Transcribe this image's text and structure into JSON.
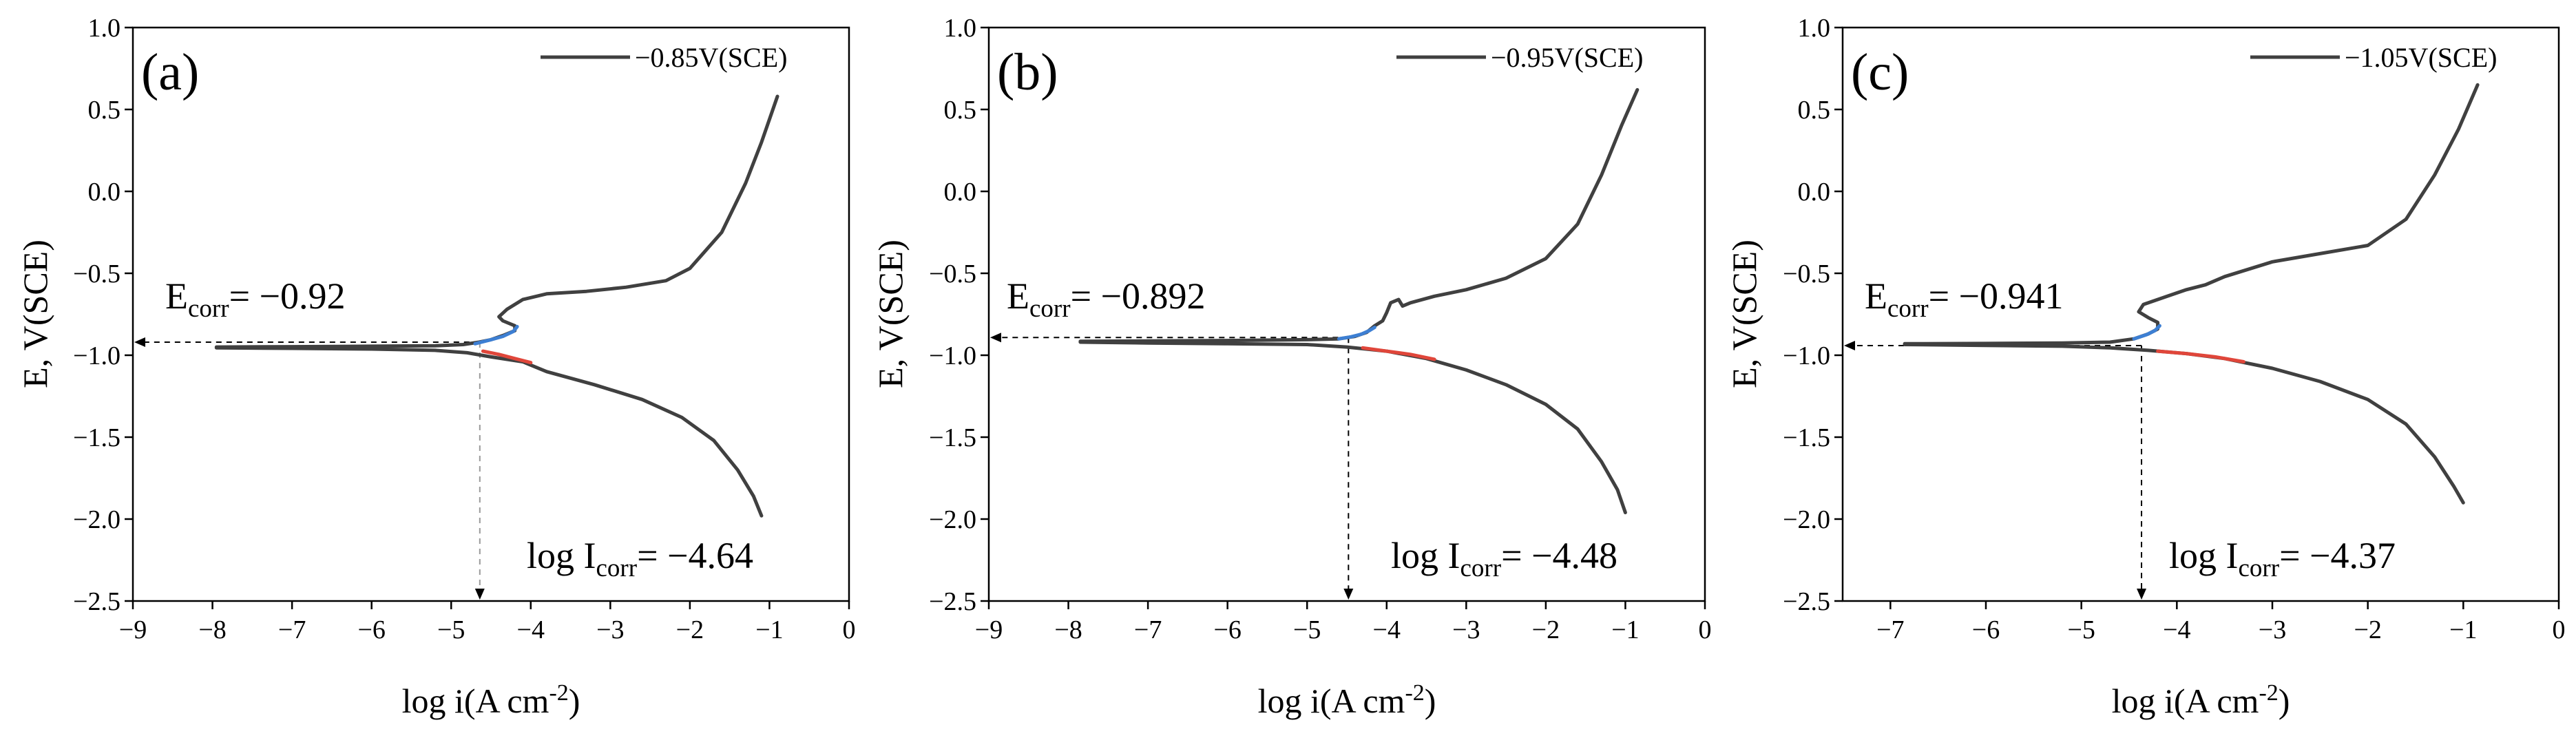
{
  "chart_data": [
    {
      "type": "line",
      "panel_label": "(a)",
      "xlabel": "log i(A cm",
      "xlabel_sup": "-2",
      "xlabel_tail": ")",
      "ylabel": "E, V(SCE)",
      "xlim": [
        -9,
        0
      ],
      "ylim": [
        -2.5,
        1.0
      ],
      "xticks": [
        -9,
        -8,
        -7,
        -6,
        -5,
        -4,
        -3,
        -2,
        -1,
        0
      ],
      "yticks": [
        1.0,
        0.5,
        0.0,
        -0.5,
        -1.0,
        -1.5,
        -2.0,
        -2.5
      ],
      "ytick_labels": [
        "1.0",
        "0.5",
        "0.0",
        "−0.5",
        "−1.0",
        "−1.5",
        "−2.0",
        "−2.5"
      ],
      "xtick_labels": [
        "−9",
        "−8",
        "−7",
        "−6",
        "−5",
        "−4",
        "−3",
        "−2",
        "−1",
        "0"
      ],
      "legend": "−0.85V(SCE)",
      "ecorr_label": "E",
      "ecorr_sub": "corr",
      "ecorr_value": "= −0.92",
      "icorr_label": "log I",
      "icorr_sub": "corr",
      "icorr_value": "= −4.64",
      "ecorr": -0.92,
      "log_icorr": -4.64,
      "series": [
        {
          "name": "anodic",
          "color": "#404040",
          "points": [
            [
              -7.95,
              -0.95
            ],
            [
              -7.0,
              -0.948
            ],
            [
              -6.0,
              -0.945
            ],
            [
              -5.2,
              -0.942
            ],
            [
              -4.85,
              -0.935
            ],
            [
              -4.65,
              -0.92
            ],
            [
              -4.5,
              -0.905
            ],
            [
              -4.35,
              -0.88
            ],
            [
              -4.2,
              -0.85
            ],
            [
              -4.2,
              -0.82
            ],
            [
              -4.35,
              -0.79
            ],
            [
              -4.4,
              -0.765
            ],
            [
              -4.3,
              -0.72
            ],
            [
              -4.1,
              -0.66
            ],
            [
              -3.8,
              -0.625
            ],
            [
              -3.3,
              -0.61
            ],
            [
              -2.8,
              -0.585
            ],
            [
              -2.3,
              -0.545
            ],
            [
              -2.0,
              -0.47
            ],
            [
              -1.6,
              -0.25
            ],
            [
              -1.3,
              0.05
            ],
            [
              -1.1,
              0.3
            ],
            [
              -0.9,
              0.58
            ]
          ]
        },
        {
          "name": "cathodic",
          "color": "#404040",
          "points": [
            [
              -7.95,
              -0.955
            ],
            [
              -7.0,
              -0.958
            ],
            [
              -6.0,
              -0.962
            ],
            [
              -5.2,
              -0.97
            ],
            [
              -4.8,
              -0.985
            ],
            [
              -4.5,
              -1.01
            ],
            [
              -4.1,
              -1.04
            ],
            [
              -3.8,
              -1.1
            ],
            [
              -3.2,
              -1.18
            ],
            [
              -2.6,
              -1.27
            ],
            [
              -2.1,
              -1.38
            ],
            [
              -1.7,
              -1.52
            ],
            [
              -1.4,
              -1.7
            ],
            [
              -1.2,
              -1.86
            ],
            [
              -1.1,
              -1.98
            ]
          ]
        },
        {
          "name": "anodic-tafel-fit",
          "color": "#3d7fd3",
          "points": [
            [
              -4.7,
              -0.93
            ],
            [
              -4.5,
              -0.905
            ],
            [
              -4.35,
              -0.885
            ],
            [
              -4.22,
              -0.855
            ],
            [
              -4.17,
              -0.825
            ]
          ]
        },
        {
          "name": "cathodic-tafel-fit",
          "color": "#e0463a",
          "points": [
            [
              -4.6,
              -0.975
            ],
            [
              -4.4,
              -0.995
            ],
            [
              -4.2,
              -1.02
            ],
            [
              -4.0,
              -1.045
            ]
          ]
        }
      ]
    },
    {
      "type": "line",
      "panel_label": "(b)",
      "xlabel": "log i(A cm",
      "xlabel_sup": "-2",
      "xlabel_tail": ")",
      "ylabel": "E, V(SCE)",
      "xlim": [
        -9,
        0
      ],
      "ylim": [
        -2.5,
        1.0
      ],
      "xticks": [
        -9,
        -8,
        -7,
        -6,
        -5,
        -4,
        -3,
        -2,
        -1,
        0
      ],
      "yticks": [
        1.0,
        0.5,
        0.0,
        -0.5,
        -1.0,
        -1.5,
        -2.0,
        -2.5
      ],
      "ytick_labels": [
        "1.0",
        "0.5",
        "0.0",
        "−0.5",
        "−1.0",
        "−1.5",
        "−2.0",
        "−2.5"
      ],
      "xtick_labels": [
        "−9",
        "−8",
        "−7",
        "−6",
        "−5",
        "−4",
        "−3",
        "−2",
        "−1",
        "0"
      ],
      "legend": "−0.95V(SCE)",
      "ecorr_label": "E",
      "ecorr_sub": "corr",
      "ecorr_value": "= −0.892",
      "icorr_label": "log I",
      "icorr_sub": "corr",
      "icorr_value": "= −4.48",
      "ecorr": -0.892,
      "log_icorr": -4.48,
      "series": [
        {
          "name": "anodic",
          "color": "#404040",
          "points": [
            [
              -7.85,
              -0.915
            ],
            [
              -7.0,
              -0.913
            ],
            [
              -6.0,
              -0.91
            ],
            [
              -5.0,
              -0.905
            ],
            [
              -4.6,
              -0.9
            ],
            [
              -4.4,
              -0.885
            ],
            [
              -4.25,
              -0.86
            ],
            [
              -4.15,
              -0.82
            ],
            [
              -4.05,
              -0.79
            ],
            [
              -4.0,
              -0.74
            ],
            [
              -3.95,
              -0.68
            ],
            [
              -3.85,
              -0.66
            ],
            [
              -3.8,
              -0.7
            ],
            [
              -3.7,
              -0.68
            ],
            [
              -3.4,
              -0.64
            ],
            [
              -3.0,
              -0.6
            ],
            [
              -2.5,
              -0.53
            ],
            [
              -2.0,
              -0.41
            ],
            [
              -1.6,
              -0.2
            ],
            [
              -1.3,
              0.1
            ],
            [
              -1.05,
              0.4
            ],
            [
              -0.85,
              0.62
            ]
          ]
        },
        {
          "name": "cathodic",
          "color": "#404040",
          "points": [
            [
              -7.85,
              -0.92
            ],
            [
              -7.0,
              -0.925
            ],
            [
              -6.0,
              -0.93
            ],
            [
              -5.0,
              -0.935
            ],
            [
              -4.5,
              -0.95
            ],
            [
              -4.0,
              -0.975
            ],
            [
              -3.5,
              -1.02
            ],
            [
              -3.0,
              -1.09
            ],
            [
              -2.5,
              -1.18
            ],
            [
              -2.0,
              -1.3
            ],
            [
              -1.6,
              -1.45
            ],
            [
              -1.3,
              -1.65
            ],
            [
              -1.1,
              -1.82
            ],
            [
              -1.0,
              -1.96
            ]
          ]
        },
        {
          "name": "anodic-tafel-fit",
          "color": "#3d7fd3",
          "points": [
            [
              -4.6,
              -0.9
            ],
            [
              -4.45,
              -0.888
            ],
            [
              -4.32,
              -0.872
            ],
            [
              -4.22,
              -0.85
            ],
            [
              -4.15,
              -0.83
            ]
          ]
        },
        {
          "name": "cathodic-tafel-fit",
          "color": "#e0463a",
          "points": [
            [
              -4.3,
              -0.955
            ],
            [
              -4.0,
              -0.975
            ],
            [
              -3.7,
              -0.995
            ],
            [
              -3.4,
              -1.025
            ]
          ]
        }
      ]
    },
    {
      "type": "line",
      "panel_label": "(c)",
      "xlabel": "log i(A cm",
      "xlabel_sup": "-2",
      "xlabel_tail": ")",
      "ylabel": "E, V(SCE)",
      "xlim": [
        -7.5,
        0
      ],
      "ylim": [
        -2.5,
        1.0
      ],
      "xticks": [
        -7,
        -6,
        -5,
        -4,
        -3,
        -2,
        -1,
        0
      ],
      "yticks": [
        1.0,
        0.5,
        0.0,
        -0.5,
        -1.0,
        -1.5,
        -2.0,
        -2.5
      ],
      "ytick_labels": [
        "1.0",
        "0.5",
        "0.0",
        "−0.5",
        "−1.0",
        "−1.5",
        "−2.0",
        "−2.5"
      ],
      "xtick_labels": [
        "−7",
        "−6",
        "−5",
        "−4",
        "−3",
        "−2",
        "−1",
        "0"
      ],
      "legend": "−1.05V(SCE)",
      "ecorr_label": "E",
      "ecorr_sub": "corr",
      "ecorr_value": "= −0.941",
      "icorr_label": "log I",
      "icorr_sub": "corr",
      "icorr_value": "= −4.37",
      "ecorr": -0.941,
      "log_icorr": -4.37,
      "series": [
        {
          "name": "anodic",
          "color": "#404040",
          "points": [
            [
              -6.85,
              -0.93
            ],
            [
              -6.0,
              -0.928
            ],
            [
              -5.2,
              -0.925
            ],
            [
              -4.7,
              -0.92
            ],
            [
              -4.45,
              -0.9
            ],
            [
              -4.3,
              -0.87
            ],
            [
              -4.2,
              -0.84
            ],
            [
              -4.2,
              -0.8
            ],
            [
              -4.3,
              -0.77
            ],
            [
              -4.4,
              -0.735
            ],
            [
              -4.35,
              -0.69
            ],
            [
              -4.1,
              -0.64
            ],
            [
              -3.9,
              -0.6
            ],
            [
              -3.7,
              -0.57
            ],
            [
              -3.5,
              -0.52
            ],
            [
              -3.0,
              -0.43
            ],
            [
              -2.5,
              -0.38
            ],
            [
              -2.0,
              -0.33
            ],
            [
              -1.6,
              -0.17
            ],
            [
              -1.3,
              0.1
            ],
            [
              -1.05,
              0.38
            ],
            [
              -0.85,
              0.65
            ]
          ]
        },
        {
          "name": "cathodic",
          "color": "#404040",
          "points": [
            [
              -6.85,
              -0.935
            ],
            [
              -6.0,
              -0.94
            ],
            [
              -5.2,
              -0.945
            ],
            [
              -4.7,
              -0.955
            ],
            [
              -4.3,
              -0.97
            ],
            [
              -3.9,
              -0.99
            ],
            [
              -3.5,
              -1.02
            ],
            [
              -3.0,
              -1.08
            ],
            [
              -2.5,
              -1.16
            ],
            [
              -2.0,
              -1.27
            ],
            [
              -1.6,
              -1.42
            ],
            [
              -1.3,
              -1.62
            ],
            [
              -1.1,
              -1.8
            ],
            [
              -1.0,
              -1.9
            ]
          ]
        },
        {
          "name": "anodic-tafel-fit",
          "color": "#3d7fd3",
          "points": [
            [
              -4.45,
              -0.9
            ],
            [
              -4.32,
              -0.875
            ],
            [
              -4.23,
              -0.85
            ],
            [
              -4.18,
              -0.82
            ]
          ]
        },
        {
          "name": "cathodic-tafel-fit",
          "color": "#e0463a",
          "points": [
            [
              -4.2,
              -0.975
            ],
            [
              -3.9,
              -0.99
            ],
            [
              -3.6,
              -1.01
            ],
            [
              -3.3,
              -1.04
            ]
          ]
        }
      ]
    }
  ]
}
